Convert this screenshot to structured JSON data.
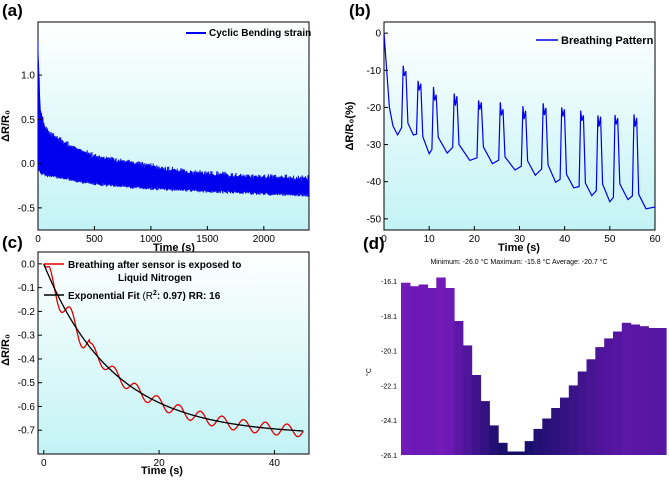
{
  "chart_data": [
    {
      "id": "a",
      "panel_label": "(a)",
      "type": "line",
      "title": "",
      "xlabel": "Time (s)",
      "ylabel": "ΔR/R₀",
      "xlim": [
        0,
        2400
      ],
      "ylim": [
        -0.75,
        1.6
      ],
      "xticks": [
        "0",
        "500",
        "1000",
        "1500",
        "2000"
      ],
      "xtick_values": [
        0,
        500,
        1000,
        1500,
        2000
      ],
      "yticks": [
        "-0.5",
        "0.0",
        "0.5",
        "1.0"
      ],
      "ytick_values": [
        -0.5,
        0,
        0.5,
        1.0
      ],
      "legend": "Cyclic Bending strain",
      "legend_position": "top-right",
      "series_color": "#0000ee",
      "series": [
        {
          "name": "Cyclic Bending strain",
          "upper_envelope": [
            [
              0,
              1.35
            ],
            [
              20,
              0.6
            ],
            [
              60,
              0.4
            ],
            [
              100,
              0.32
            ],
            [
              200,
              0.25
            ],
            [
              300,
              0.18
            ],
            [
              400,
              0.12
            ],
            [
              500,
              0.07
            ],
            [
              600,
              0.04
            ],
            [
              800,
              0.0
            ],
            [
              1000,
              -0.04
            ],
            [
              1200,
              -0.09
            ],
            [
              1500,
              -0.13
            ],
            [
              1800,
              -0.15
            ],
            [
              2100,
              -0.17
            ],
            [
              2400,
              -0.18
            ]
          ],
          "lower_envelope": [
            [
              0,
              -0.05
            ],
            [
              20,
              -0.1
            ],
            [
              100,
              -0.13
            ],
            [
              200,
              -0.15
            ],
            [
              400,
              -0.2
            ],
            [
              600,
              -0.23
            ],
            [
              800,
              -0.25
            ],
            [
              1000,
              -0.27
            ],
            [
              1500,
              -0.3
            ],
            [
              2000,
              -0.33
            ],
            [
              2400,
              -0.35
            ]
          ]
        }
      ]
    },
    {
      "id": "b",
      "panel_label": "(b)",
      "type": "line",
      "title": "",
      "xlabel": "Time (s)",
      "ylabel": "ΔR/R₀(%)",
      "xlim": [
        0,
        60
      ],
      "ylim": [
        -53,
        3
      ],
      "xticks": [
        "0",
        "10",
        "20",
        "30",
        "40",
        "50",
        "60"
      ],
      "xtick_values": [
        0,
        10,
        20,
        30,
        40,
        50,
        60
      ],
      "yticks": [
        "0",
        "-10",
        "-20",
        "-30",
        "-40",
        "-50"
      ],
      "ytick_values": [
        0,
        -10,
        -20,
        -30,
        -40,
        -50
      ],
      "legend": "Breathing Pattern",
      "legend_position": "top-right",
      "series_color": "#0000ee",
      "series": [
        {
          "name": "Breathing Pattern",
          "start_value": 0,
          "peaks": [
            [
              4.5,
              -12
            ],
            [
              7.8,
              -16
            ],
            [
              11.2,
              -18
            ],
            [
              15.8,
              -19
            ],
            [
              21.2,
              -21
            ],
            [
              26,
              -22
            ],
            [
              31,
              -23
            ],
            [
              35.5,
              -22
            ],
            [
              39.6,
              -23
            ],
            [
              43.8,
              -24
            ],
            [
              47.6,
              -25
            ],
            [
              51.4,
              -25
            ],
            [
              55.6,
              -25
            ]
          ],
          "troughs": [
            [
              3,
              -27
            ],
            [
              6.5,
              -28
            ],
            [
              10,
              -32
            ],
            [
              14,
              -32
            ],
            [
              19,
              -34
            ],
            [
              24,
              -35
            ],
            [
              29,
              -37
            ],
            [
              33.5,
              -38
            ],
            [
              38,
              -40
            ],
            [
              42,
              -42
            ],
            [
              46,
              -44
            ],
            [
              50,
              -45
            ],
            [
              54,
              -45
            ],
            [
              58,
              -47
            ],
            [
              60,
              -47
            ]
          ]
        }
      ]
    },
    {
      "id": "c",
      "panel_label": "(c)",
      "type": "line",
      "title": "",
      "xlabel": "Time (s)",
      "ylabel": "ΔR/R₀",
      "xlim": [
        -1,
        46
      ],
      "ylim": [
        -0.8,
        0.05
      ],
      "xticks": [
        "0",
        "20",
        "40"
      ],
      "xtick_values": [
        0,
        20,
        40
      ],
      "yticks": [
        "0.0",
        "-0.1",
        "-0.2",
        "-0.3",
        "-0.4",
        "-0.5",
        "-0.6",
        "-0.7"
      ],
      "ytick_values": [
        0,
        -0.1,
        -0.2,
        -0.3,
        -0.4,
        -0.5,
        -0.6,
        -0.7
      ],
      "legend_entries": [
        {
          "label": "Breathing after sensor is exposed to",
          "label_line2": "Liquid Nitrogen",
          "color": "#e00000"
        },
        {
          "label": "Exponential Fit ",
          "fit_paren": "(R",
          "fit_sup": "2",
          "fit_rest": ": 0.97) RR: 16",
          "color": "#000000"
        }
      ],
      "series": [
        {
          "name": "Breathing after sensor is exposed to Liquid Nitrogen",
          "color": "#e00000",
          "oscillation_period_s": 3.75,
          "oscillation_amplitude": 0.025,
          "decay_to": -0.72,
          "tau_s": 12
        },
        {
          "name": "Exponential Fit",
          "color": "#000000",
          "model": "y = -0.72*(1 - exp(-t/12))",
          "x": [
            0,
            45
          ]
        }
      ]
    },
    {
      "id": "d",
      "panel_label": "(d)",
      "type": "bar",
      "title": "Minimum: -26.0 °C Maximum: -15.8 °C Average: -20.7 °C",
      "xlabel": "",
      "ylabel": "°C",
      "ylim": [
        -26.1,
        -15.8
      ],
      "yticks": [
        "-16.1",
        "-18.1",
        "-20.1",
        "-22.1",
        "-24.1",
        "-26.1"
      ],
      "ytick_values": [
        -16.1,
        -18.1,
        -20.1,
        -22.1,
        -24.1,
        -26.1
      ],
      "values": [
        -16.2,
        -16.4,
        -16.3,
        -16.5,
        -15.9,
        -16.5,
        -18.4,
        -19.8,
        -21.5,
        -23.0,
        -24.4,
        -25.4,
        -25.9,
        -25.9,
        -25.3,
        -24.6,
        -24.0,
        -23.4,
        -22.8,
        -22.1,
        -21.3,
        -20.6,
        -19.9,
        -19.4,
        -19.0,
        -18.5,
        -18.6,
        -18.7,
        -18.8,
        -18.8
      ]
    }
  ]
}
